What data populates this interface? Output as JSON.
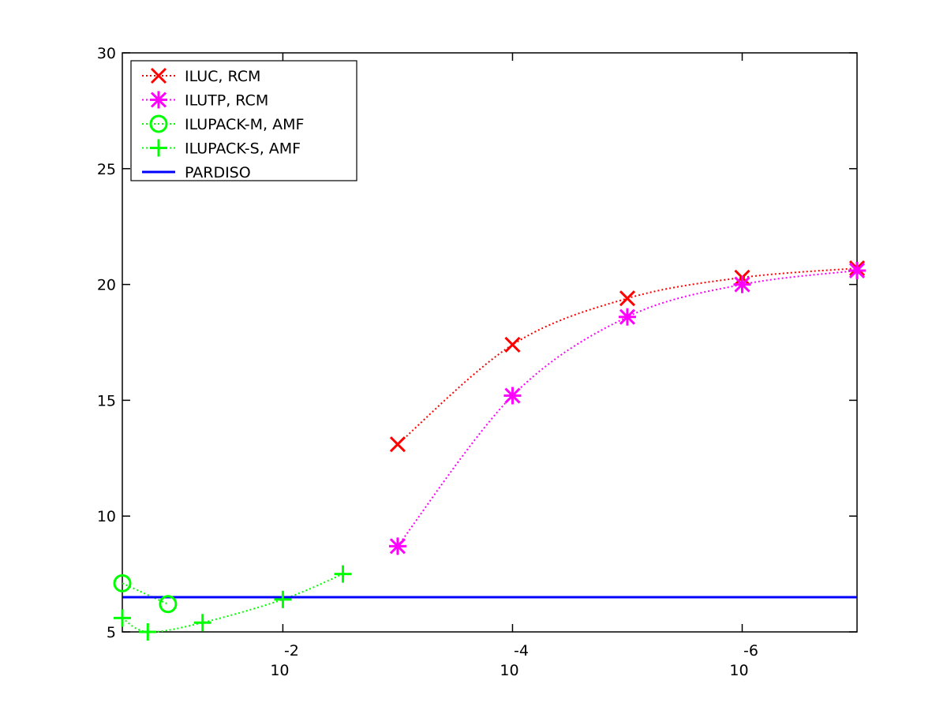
{
  "chart_data": {
    "type": "line",
    "title": "",
    "xlabel": "",
    "ylabel": "",
    "x_scale": "log (reversed, decreasing to the right)",
    "xlim": [
      0.25,
      1e-07
    ],
    "ylim": [
      5,
      30
    ],
    "grid": false,
    "legend_position": "top-left",
    "y_ticks": [
      "5",
      "10",
      "15",
      "20",
      "25",
      "30"
    ],
    "x_ticks": [
      {
        "value": 0.01,
        "base": "10",
        "exp": "-2"
      },
      {
        "value": 0.0001,
        "base": "10",
        "exp": "-4"
      },
      {
        "value": 1e-06,
        "base": "10",
        "exp": "-6"
      }
    ],
    "series": [
      {
        "name": "ILUC, RCM",
        "color": "#ff0000",
        "marker": "x",
        "line": "dotted",
        "x": [
          0.001,
          0.0001,
          1e-05,
          1e-06,
          1e-07
        ],
        "y": [
          13.1,
          17.4,
          19.4,
          20.3,
          20.7
        ]
      },
      {
        "name": "ILUTP, RCM",
        "color": "#ff00ff",
        "marker": "asterisk",
        "line": "dotted",
        "x": [
          0.001,
          0.0001,
          1e-05,
          1e-06,
          1e-07
        ],
        "y": [
          8.7,
          15.2,
          18.6,
          20.0,
          20.6
        ]
      },
      {
        "name": "ILUPACK-M, AMF",
        "color": "#00ff00",
        "marker": "circle",
        "line": "dotted",
        "x": [
          0.25,
          0.1
        ],
        "y": [
          7.1,
          6.2
        ]
      },
      {
        "name": "ILUPACK-S, AMF",
        "color": "#00ff00",
        "marker": "plus",
        "line": "dotted",
        "x": [
          0.25,
          0.15,
          0.05,
          0.01,
          0.003
        ],
        "y": [
          5.6,
          5.0,
          5.4,
          6.4,
          7.5
        ]
      },
      {
        "name": "PARDISO",
        "color": "#0000ff",
        "marker": "none",
        "line": "solid",
        "x": [
          0.25,
          1e-07
        ],
        "y": [
          6.5,
          6.5
        ]
      }
    ]
  }
}
